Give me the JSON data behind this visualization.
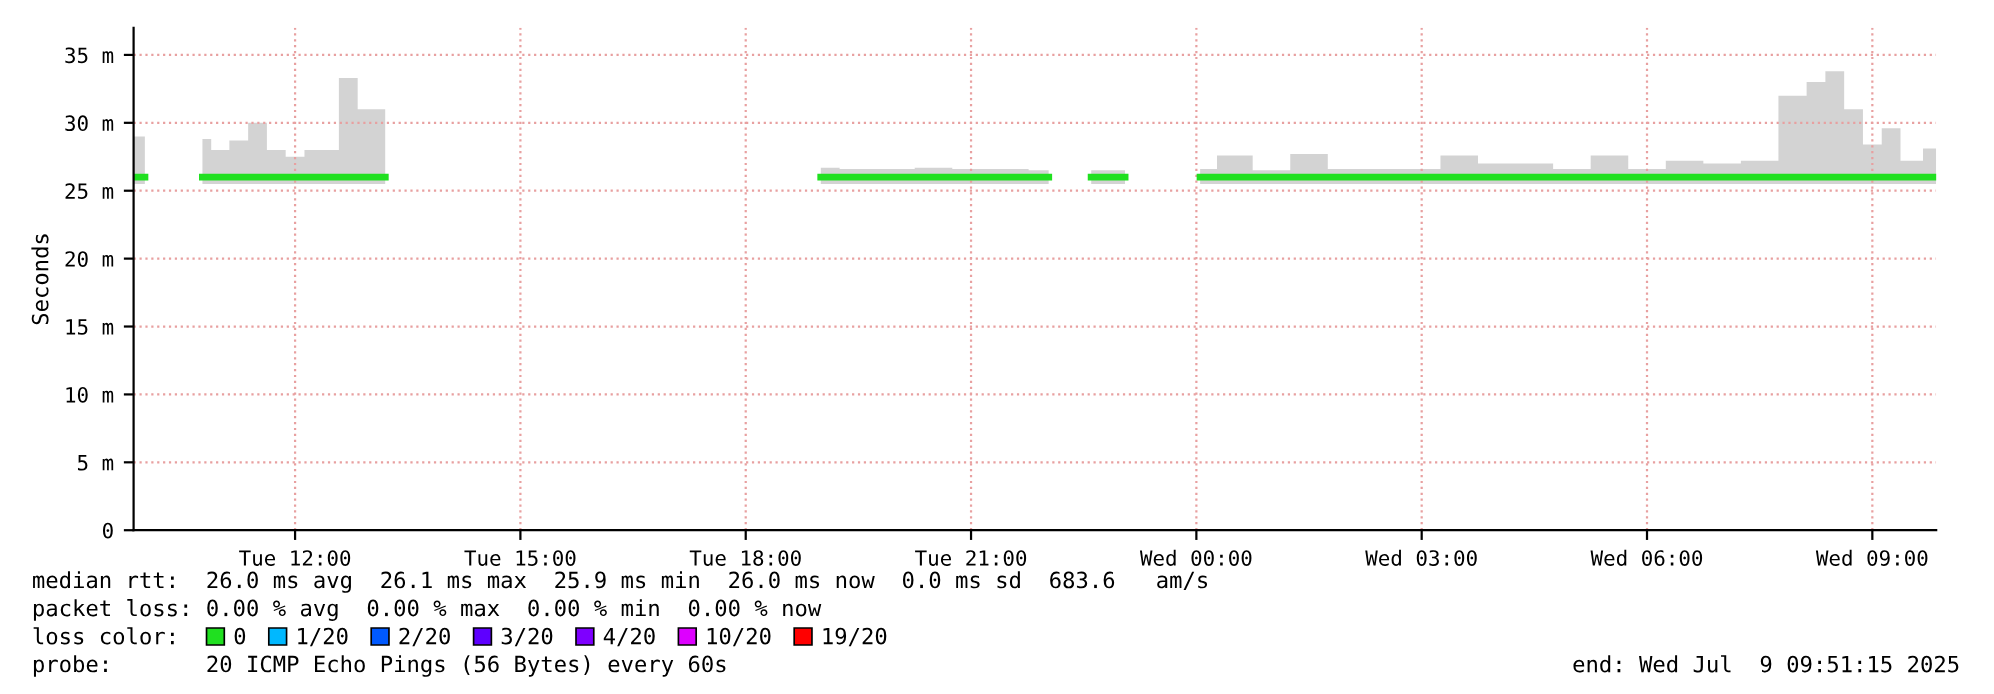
{
  "chart_data": {
    "type": "line",
    "ylabel": "Seconds",
    "x": [
      "2025-07-08T09:51",
      "2025-07-08T10:00",
      "2025-07-08T10:20",
      "2025-07-08T10:46",
      "2025-07-08T11:00",
      "2025-07-08T11:15",
      "2025-07-08T11:30",
      "2025-07-08T11:45",
      "2025-07-08T12:00",
      "2025-07-08T12:15",
      "2025-07-08T12:30",
      "2025-07-08T12:40",
      "2025-07-08T13:00",
      "2025-07-08T13:12",
      "2025-07-08T16:00",
      "2025-07-08T19:00",
      "2025-07-08T19:30",
      "2025-07-08T20:00",
      "2025-07-08T20:30",
      "2025-07-08T21:00",
      "2025-07-08T21:30",
      "2025-07-08T22:02",
      "2025-07-08T22:20",
      "2025-07-08T22:36",
      "2025-07-08T23:03",
      "2025-07-08T23:30",
      "2025-07-09T00:03",
      "2025-07-09T00:30",
      "2025-07-09T01:00",
      "2025-07-09T01:30",
      "2025-07-09T02:00",
      "2025-07-09T02:30",
      "2025-07-09T03:00",
      "2025-07-09T03:30",
      "2025-07-09T04:00",
      "2025-07-09T04:30",
      "2025-07-09T05:00",
      "2025-07-09T05:30",
      "2025-07-09T06:00",
      "2025-07-09T06:30",
      "2025-07-09T07:00",
      "2025-07-09T07:30",
      "2025-07-09T08:00",
      "2025-07-09T08:15",
      "2025-07-09T08:30",
      "2025-07-09T08:45",
      "2025-07-09T09:00",
      "2025-07-09T09:15",
      "2025-07-09T09:30",
      "2025-07-09T09:51"
    ],
    "series": [
      {
        "name": "0",
        "color": "#20e020",
        "values": [
          26,
          26,
          null,
          26,
          26,
          26,
          26,
          26,
          26,
          26,
          26,
          26,
          26,
          26,
          null,
          26,
          26,
          26,
          26,
          26,
          26,
          26,
          null,
          26,
          26,
          null,
          26,
          26,
          26,
          26,
          26,
          26,
          26,
          26,
          26,
          26,
          26,
          26,
          26,
          26,
          26,
          26,
          26,
          26,
          26,
          26,
          26,
          26,
          26,
          26
        ],
        "lower": [
          25.5,
          25.5,
          null,
          25.5,
          25.5,
          25.5,
          25.5,
          25.5,
          25.5,
          25.5,
          25.5,
          25.5,
          25.5,
          25.5,
          null,
          25.5,
          25.5,
          25.5,
          25.5,
          25.5,
          25.5,
          25.5,
          null,
          25.5,
          25.5,
          null,
          25.5,
          25.5,
          25.5,
          25.5,
          25.5,
          25.5,
          25.5,
          25.5,
          25.5,
          25.5,
          25.5,
          25.5,
          25.5,
          25.5,
          25.5,
          25.5,
          25.5,
          25.5,
          25.5,
          25.5,
          25.5,
          25.5,
          25.5,
          25.5
        ],
        "upper": [
          29,
          29,
          null,
          28.8,
          28,
          28.7,
          30,
          28,
          27.5,
          28,
          28,
          33.3,
          31,
          31,
          null,
          26.7,
          26.6,
          26.6,
          26.7,
          26.6,
          26.6,
          26.5,
          null,
          26.5,
          26.5,
          null,
          26.6,
          27.6,
          26.5,
          27.7,
          26.6,
          26.6,
          26.6,
          27.6,
          27,
          27,
          26.6,
          27.6,
          26.6,
          27.2,
          27,
          27.2,
          32,
          33,
          33.8,
          31,
          28.4,
          29.6,
          27.2,
          28.1
        ]
      },
      {
        "name": "1/20",
        "color": "#00b8ff",
        "values": [
          null,
          null,
          null,
          null,
          null,
          null,
          null,
          null,
          null,
          null,
          null,
          null,
          null,
          null,
          null,
          null,
          null,
          null,
          null,
          null,
          null,
          null,
          null,
          null,
          null,
          null,
          null,
          null,
          null,
          null,
          null,
          null,
          null,
          null,
          null,
          null,
          null,
          null,
          null,
          null,
          null,
          null,
          null,
          null,
          null,
          null,
          null,
          null,
          null,
          null
        ]
      },
      {
        "name": "2/20",
        "color": "#0059ff",
        "values": [
          null,
          null,
          null,
          null,
          null,
          null,
          null,
          null,
          null,
          null,
          null,
          null,
          null,
          null,
          null,
          null,
          null,
          null,
          null,
          null,
          null,
          null,
          null,
          null,
          null,
          null,
          null,
          null,
          null,
          null,
          null,
          null,
          null,
          null,
          null,
          null,
          null,
          null,
          null,
          null,
          null,
          null,
          null,
          null,
          null,
          null,
          null,
          null,
          null,
          null
        ]
      },
      {
        "name": "3/20",
        "color": "#5e00ff",
        "values": [
          null,
          null,
          null,
          null,
          null,
          null,
          null,
          null,
          null,
          null,
          null,
          null,
          null,
          null,
          null,
          null,
          null,
          null,
          null,
          null,
          null,
          null,
          null,
          null,
          null,
          null,
          null,
          null,
          null,
          null,
          null,
          null,
          null,
          null,
          null,
          null,
          null,
          null,
          null,
          null,
          null,
          null,
          null,
          null,
          null,
          null,
          null,
          null,
          null,
          null
        ]
      },
      {
        "name": "4/20",
        "color": "#7e00ff",
        "values": [
          null,
          null,
          null,
          null,
          null,
          null,
          null,
          null,
          null,
          null,
          null,
          null,
          null,
          null,
          null,
          null,
          null,
          null,
          null,
          null,
          null,
          null,
          null,
          null,
          null,
          null,
          null,
          null,
          null,
          null,
          null,
          null,
          null,
          null,
          null,
          null,
          null,
          null,
          null,
          null,
          null,
          null,
          null,
          null,
          null,
          null,
          null,
          null,
          null,
          null
        ]
      },
      {
        "name": "10/20",
        "color": "#dd00ff",
        "values": [
          null,
          null,
          null,
          null,
          null,
          null,
          null,
          null,
          null,
          null,
          null,
          null,
          null,
          null,
          null,
          null,
          null,
          null,
          null,
          null,
          null,
          null,
          null,
          null,
          null,
          null,
          null,
          null,
          null,
          null,
          null,
          null,
          null,
          null,
          null,
          null,
          null,
          null,
          null,
          null,
          null,
          null,
          null,
          null,
          null,
          null,
          null,
          null,
          null,
          null
        ]
      },
      {
        "name": "19/20",
        "color": "#ff0000",
        "values": [
          null,
          null,
          null,
          null,
          null,
          null,
          null,
          null,
          null,
          null,
          null,
          null,
          null,
          null,
          null,
          null,
          null,
          null,
          null,
          null,
          null,
          null,
          null,
          null,
          null,
          null,
          null,
          null,
          null,
          null,
          null,
          null,
          null,
          null,
          null,
          null,
          null,
          null,
          null,
          null,
          null,
          null,
          null,
          null,
          null,
          null,
          null,
          null,
          null,
          null
        ]
      }
    ],
    "ylim": [
      0,
      37
    ],
    "yticks": [
      0,
      {
        "value": 5,
        "label": "5 m"
      },
      {
        "value": 10,
        "label": "10 m"
      },
      {
        "value": 15,
        "label": "15 m"
      },
      {
        "value": 20,
        "label": "20 m"
      },
      {
        "value": 25,
        "label": "25 m"
      },
      {
        "value": 30,
        "label": "30 m"
      },
      {
        "value": 35,
        "label": "35 m"
      }
    ],
    "xlim": [
      "2025-07-08T09:51",
      "2025-07-09T09:51"
    ],
    "xticks": [
      {
        "value": "2025-07-08T12:00",
        "label": "Tue 12:00"
      },
      {
        "value": "2025-07-08T15:00",
        "label": "Tue 15:00"
      },
      {
        "value": "2025-07-08T18:00",
        "label": "Tue 18:00"
      },
      {
        "value": "2025-07-08T21:00",
        "label": "Tue 21:00"
      },
      {
        "value": "2025-07-09T00:00",
        "label": "Wed 00:00"
      },
      {
        "value": "2025-07-09T03:00",
        "label": "Wed 03:00"
      },
      {
        "value": "2025-07-09T06:00",
        "label": "Wed 06:00"
      },
      {
        "value": "2025-07-09T09:00",
        "label": "Wed 09:00"
      }
    ],
    "grid": true,
    "line_style": "solid",
    "legend": "bottom",
    "legend_title": "loss color:",
    "annotations": [
      "median rtt:  26.0 ms avg  26.1 ms max  25.9 ms min  26.0 ms now  0.0 ms sd  683.6   am/s",
      "packet loss: 0.00 % avg  0.00 % max  0.00 % min  0.00 % now",
      "probe:       20 ICMP Echo Pings (56 Bytes) every 60s",
      "end: Wed Jul  9 09:51:15 2025"
    ]
  }
}
